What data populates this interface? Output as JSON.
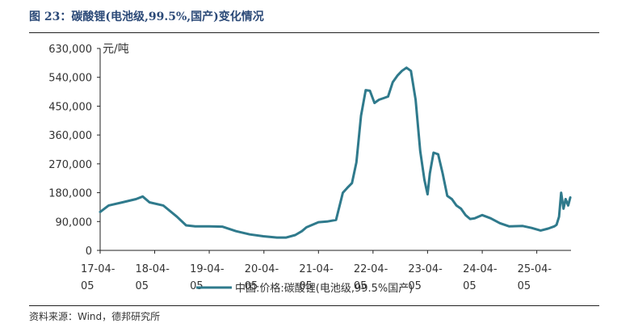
{
  "figure_title": "图 23：碳酸锂(电池级,99.5%,国产)变化情况",
  "source_note": "资料来源：Wind，德邦研究所",
  "colors": {
    "line": "#2f7a8c",
    "axis": "#222222",
    "text": "#333333",
    "title": "#2c4a78"
  },
  "chart_data": {
    "type": "line",
    "title": "",
    "xlabel": "",
    "ylabel": "元/吨",
    "ylim": [
      0,
      630000
    ],
    "yticks": [
      0,
      90000,
      180000,
      270000,
      360000,
      450000,
      540000,
      630000
    ],
    "ytick_labels": [
      "0",
      "90,000",
      "180,000",
      "270,000",
      "360,000",
      "450,000",
      "540,000",
      "630,000"
    ],
    "xticks": [
      "2017-04-05",
      "2018-04-05",
      "2019-04-05",
      "2020-04-05",
      "2021-04-05",
      "2022-04-05",
      "2023-04-05",
      "2024-04-05",
      "2025-04-05"
    ],
    "xtick_labels": [
      [
        "17-04-",
        "05"
      ],
      [
        "18-04-",
        "05"
      ],
      [
        "19-04-",
        "05"
      ],
      [
        "20-04-",
        "05"
      ],
      [
        "21-04-",
        "05"
      ],
      [
        "22-04-",
        "05"
      ],
      [
        "23-04-",
        "05"
      ],
      [
        "24-04-",
        "05"
      ],
      [
        "25-04-",
        "05"
      ]
    ],
    "grid": false,
    "legend_position": "bottom-center",
    "series": [
      {
        "name": "中国:价格:碳酸锂(电池级,99.5%国产)",
        "x": [
          "2017-04-05",
          "2017-06-01",
          "2017-09-01",
          "2017-12-01",
          "2018-01-15",
          "2018-03-01",
          "2018-06-01",
          "2018-09-01",
          "2018-11-01",
          "2019-01-01",
          "2019-04-05",
          "2019-07-01",
          "2019-10-01",
          "2020-01-01",
          "2020-04-01",
          "2020-07-01",
          "2020-09-01",
          "2020-11-01",
          "2020-12-15",
          "2021-01-15",
          "2021-04-05",
          "2021-06-01",
          "2021-08-01",
          "2021-09-15",
          "2021-10-15",
          "2021-11-15",
          "2021-12-15",
          "2022-01-15",
          "2022-02-15",
          "2022-03-15",
          "2022-04-15",
          "2022-05-15",
          "2022-06-15",
          "2022-07-15",
          "2022-08-15",
          "2022-09-15",
          "2022-10-15",
          "2022-11-15",
          "2022-12-15",
          "2023-01-15",
          "2023-02-15",
          "2023-03-15",
          "2023-04-05",
          "2023-04-20",
          "2023-05-15",
          "2023-06-15",
          "2023-07-15",
          "2023-08-15",
          "2023-09-15",
          "2023-10-15",
          "2023-11-15",
          "2023-12-15",
          "2024-01-15",
          "2024-02-15",
          "2024-04-05",
          "2024-06-01",
          "2024-08-01",
          "2024-10-01",
          "2025-01-01",
          "2025-03-01",
          "2025-05-01",
          "2025-06-20",
          "2025-08-01",
          "2025-08-15",
          "2025-09-01",
          "2025-09-15",
          "2025-10-01",
          "2025-10-15",
          "2025-11-01",
          "2025-11-15"
        ],
        "y": [
          120000,
          140000,
          150000,
          160000,
          168000,
          150000,
          140000,
          105000,
          78000,
          75000,
          75000,
          74000,
          60000,
          50000,
          44000,
          40000,
          40000,
          48000,
          60000,
          72000,
          88000,
          90000,
          95000,
          180000,
          195000,
          210000,
          275000,
          420000,
          500000,
          498000,
          460000,
          470000,
          475000,
          480000,
          525000,
          545000,
          560000,
          570000,
          560000,
          470000,
          310000,
          220000,
          175000,
          240000,
          305000,
          300000,
          240000,
          170000,
          160000,
          140000,
          130000,
          110000,
          98000,
          100000,
          110000,
          100000,
          85000,
          75000,
          76000,
          70000,
          62000,
          68000,
          75000,
          80000,
          105000,
          180000,
          130000,
          160000,
          140000,
          165000
        ]
      }
    ]
  }
}
